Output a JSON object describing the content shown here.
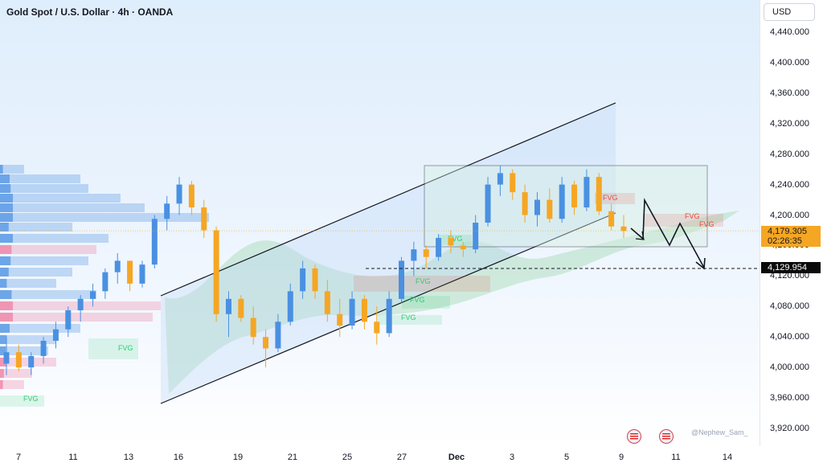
{
  "header": {
    "title": "Gold Spot / U.S. Dollar · 4h · OANDA"
  },
  "price_axis": {
    "currency": "USD",
    "ticks": [
      "4,440.000",
      "4,400.000",
      "4,360.000",
      "4,320.000",
      "4,280.000",
      "4,240.000",
      "4,200.000",
      "4,160.000",
      "4,120.000",
      "4,080.000",
      "4,040.000",
      "4,000.000",
      "3,960.000",
      "3,920.000"
    ],
    "last_price": "4,179.305",
    "countdown": "02:26:35",
    "target_price": "4,129.954"
  },
  "time_axis": {
    "ticks": [
      "7",
      "11",
      "13",
      "16",
      "19",
      "21",
      "25",
      "27",
      "Dec",
      "3",
      "5",
      "9",
      "11",
      "14"
    ]
  },
  "watermark": "@Nephew_Sam_",
  "fvg_label": "FVG",
  "colors": {
    "bull": "#4a90e2",
    "bear": "#f5a623",
    "fvg_bull": "#2ecc71",
    "fvg_bear": "#e74c3c",
    "cloud": "#8fd19e"
  },
  "chart_data": {
    "type": "candlestick",
    "title": "Gold Spot / U.S. Dollar · 4h · OANDA",
    "x_ticks": [
      "7",
      "11",
      "13",
      "16",
      "19",
      "21",
      "25",
      "27",
      "Dec",
      "3",
      "5",
      "9",
      "11",
      "14"
    ],
    "ylim": [
      3920,
      4460
    ],
    "y_ticks": [
      4440,
      4400,
      4360,
      4320,
      4280,
      4240,
      4200,
      4160,
      4120,
      4080,
      4040,
      4000,
      3960,
      3920
    ],
    "last_price": 4179.305,
    "target_level": 4129.954,
    "ohlc_approx": [
      [
        4005,
        4040,
        3990,
        4020
      ],
      [
        4020,
        4030,
        3995,
        4000
      ],
      [
        4000,
        4020,
        3990,
        4015
      ],
      [
        4015,
        4040,
        4005,
        4035
      ],
      [
        4035,
        4060,
        4025,
        4050
      ],
      [
        4050,
        4080,
        4040,
        4075
      ],
      [
        4075,
        4095,
        4060,
        4090
      ],
      [
        4090,
        4110,
        4080,
        4100
      ],
      [
        4100,
        4130,
        4090,
        4125
      ],
      [
        4125,
        4150,
        4110,
        4140
      ],
      [
        4140,
        4130,
        4100,
        4110
      ],
      [
        4110,
        4140,
        4105,
        4135
      ],
      [
        4135,
        4200,
        4130,
        4195
      ],
      [
        4195,
        4225,
        4180,
        4215
      ],
      [
        4215,
        4250,
        4200,
        4240
      ],
      [
        4240,
        4245,
        4200,
        4210
      ],
      [
        4210,
        4220,
        4170,
        4180
      ],
      [
        4180,
        4185,
        4060,
        4070
      ],
      [
        4070,
        4100,
        4040,
        4090
      ],
      [
        4090,
        4095,
        4060,
        4065
      ],
      [
        4065,
        4080,
        4030,
        4040
      ],
      [
        4040,
        4050,
        4000,
        4025
      ],
      [
        4025,
        4070,
        4020,
        4060
      ],
      [
        4060,
        4110,
        4055,
        4100
      ],
      [
        4100,
        4140,
        4090,
        4130
      ],
      [
        4130,
        4135,
        4090,
        4100
      ],
      [
        4100,
        4115,
        4060,
        4070
      ],
      [
        4070,
        4090,
        4040,
        4055
      ],
      [
        4055,
        4100,
        4050,
        4090
      ],
      [
        4090,
        4095,
        4050,
        4060
      ],
      [
        4060,
        4080,
        4030,
        4045
      ],
      [
        4045,
        4100,
        4040,
        4090
      ],
      [
        4090,
        4145,
        4085,
        4140
      ],
      [
        4140,
        4165,
        4120,
        4155
      ],
      [
        4155,
        4160,
        4130,
        4145
      ],
      [
        4145,
        4175,
        4140,
        4170
      ],
      [
        4170,
        4180,
        4150,
        4160
      ],
      [
        4160,
        4165,
        4145,
        4155
      ],
      [
        4155,
        4200,
        4150,
        4190
      ],
      [
        4190,
        4250,
        4185,
        4240
      ],
      [
        4240,
        4265,
        4225,
        4255
      ],
      [
        4255,
        4260,
        4220,
        4230
      ],
      [
        4230,
        4240,
        4190,
        4200
      ],
      [
        4200,
        4230,
        4185,
        4220
      ],
      [
        4220,
        4235,
        4190,
        4195
      ],
      [
        4195,
        4250,
        4190,
        4240
      ],
      [
        4240,
        4245,
        4200,
        4210
      ],
      [
        4210,
        4260,
        4205,
        4250
      ],
      [
        4250,
        4255,
        4200,
        4205
      ],
      [
        4205,
        4215,
        4180,
        4185
      ],
      [
        4185,
        4200,
        4170,
        4179
      ]
    ]
  }
}
